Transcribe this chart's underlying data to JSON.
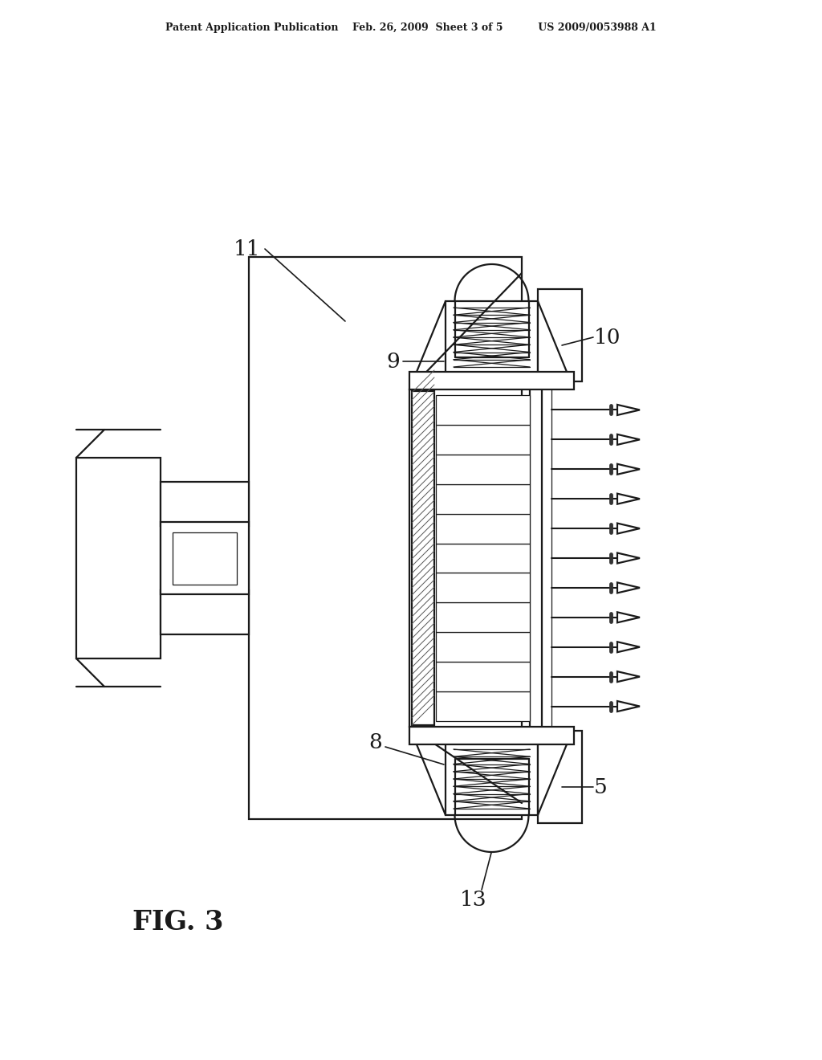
{
  "bg_color": "#ffffff",
  "line_color": "#1a1a1a",
  "header": "Patent Application Publication    Feb. 26, 2009  Sheet 3 of 5          US 2009/0053988 A1",
  "fig_label": "FIG. 3",
  "lw_main": 1.6,
  "lw_thin": 0.9,
  "lw_thick": 2.0
}
